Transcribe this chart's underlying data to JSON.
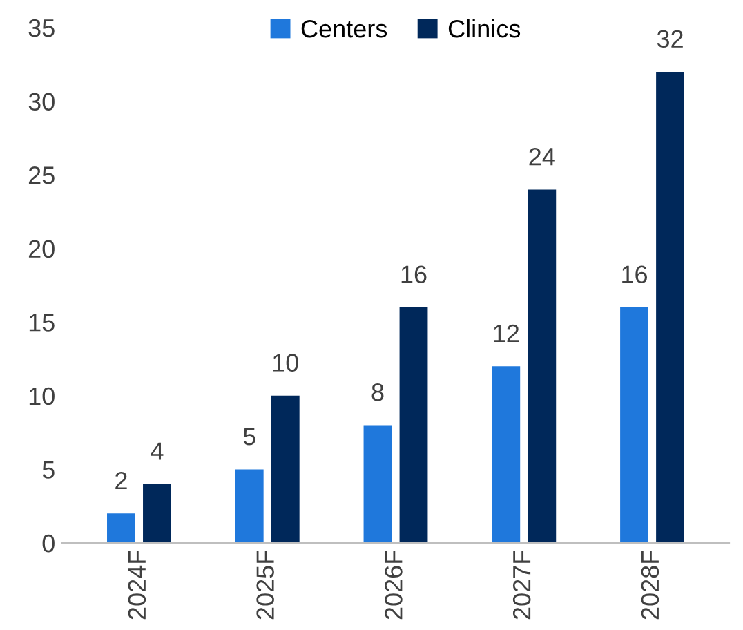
{
  "chart_data": {
    "type": "bar",
    "categories": [
      "2024F",
      "2025F",
      "2026F",
      "2027F",
      "2028F"
    ],
    "series": [
      {
        "name": "Centers",
        "color": "#1f78dc",
        "values": [
          2,
          5,
          8,
          12,
          16
        ]
      },
      {
        "name": "Clinics",
        "color": "#00285a",
        "values": [
          4,
          10,
          16,
          24,
          32
        ]
      }
    ],
    "ylim": [
      0,
      35
    ],
    "yticks": [
      0,
      5,
      10,
      15,
      20,
      25,
      30,
      35
    ],
    "data_labels": true,
    "legend": "top",
    "grid": false
  }
}
